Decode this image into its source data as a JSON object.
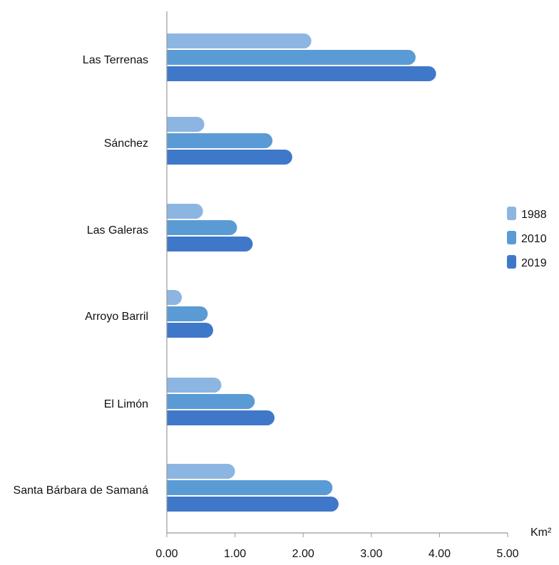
{
  "chart_data": {
    "type": "bar",
    "orientation": "horizontal",
    "categories": [
      "Las Terrenas",
      "Sánchez",
      "Las Galeras",
      "Arroyo Barril",
      "El Limón",
      "Santa Bárbara de Samaná"
    ],
    "series": [
      {
        "name": "1988",
        "color": "#8cb5e2",
        "values": [
          2.12,
          0.55,
          0.53,
          0.22,
          0.8,
          1.0
        ]
      },
      {
        "name": "2010",
        "color": "#5b9bd5",
        "values": [
          3.65,
          1.55,
          1.03,
          0.6,
          1.29,
          2.43
        ]
      },
      {
        "name": "2019",
        "color": "#4078c9",
        "values": [
          3.95,
          1.84,
          1.26,
          0.68,
          1.58,
          2.52
        ]
      }
    ],
    "xlim": [
      0,
      5
    ],
    "x_ticks": [
      "0.00",
      "1.00",
      "2.00",
      "3.00",
      "4.00",
      "5.00"
    ],
    "unit_label": "Km²",
    "legend_position": "right",
    "grid": false
  }
}
